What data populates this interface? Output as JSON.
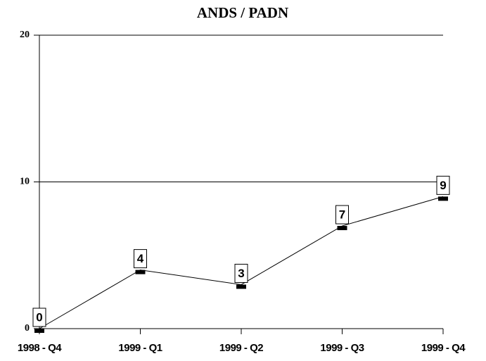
{
  "chart_data": {
    "type": "line",
    "title": "ANDS / PADN",
    "categories": [
      "1998 - Q4",
      "1999 - Q1",
      "1999 - Q2",
      "1999 - Q3",
      "1999 - Q4"
    ],
    "values": [
      0,
      4,
      3,
      7,
      9
    ],
    "color": "#000000",
    "ylim": [
      0,
      20
    ],
    "yticks": [
      0,
      10,
      20
    ],
    "grid": true
  }
}
